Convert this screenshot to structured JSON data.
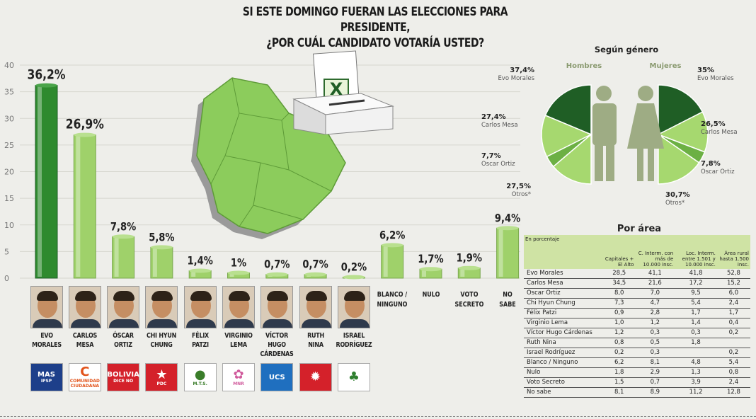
{
  "header": {
    "line1": "SI ESTE DOMINGO FUERAN LAS ELECCIONES PARA PRESIDENTE,",
    "line2": "¿POR CUÁL CANDIDATO VOTARÍA USTED?"
  },
  "colors": {
    "bar_main": "#2e8a2e",
    "bar": "#9fd16a",
    "dark_green": "#1f5e25",
    "mid_green": "#6cb044",
    "light_green": "#a6d86f",
    "figure": "#9eac84"
  },
  "chart_data": [
    {
      "type": "bar",
      "categories": [
        "EVO MORALES",
        "CARLOS MESA",
        "ÓSCAR ORTIZ",
        "CHI HYUN CHUNG",
        "FÉLIX PATZI",
        "VIRGINIO LEMA",
        "VÍCTOR HUGO CÁRDENAS",
        "RUTH NINA",
        "ISRAEL RODRÍGUEZ",
        "BLANCO / NINGUNO",
        "NULO",
        "VOTO SECRETO",
        "NO SABE"
      ],
      "values": [
        36.2,
        26.9,
        7.8,
        5.8,
        1.4,
        1,
        0.7,
        0.7,
        0.2,
        6.2,
        1.7,
        1.9,
        9.4
      ],
      "data_labels": [
        "36,2%",
        "26,9%",
        "7,8%",
        "5,8%",
        "1,4%",
        "1%",
        "0,7%",
        "0,7%",
        "0,2%",
        "6,2%",
        "1,7%",
        "1,9%",
        "9,4%"
      ],
      "ylim": [
        0,
        40
      ],
      "yticks": [
        "0",
        "5",
        "10",
        "15",
        "20",
        "25",
        "30",
        "35",
        "40"
      ],
      "title": "",
      "xlabel": "",
      "ylabel": ""
    },
    {
      "type": "pie",
      "title": "Según género",
      "series": [
        {
          "name": "Hombres",
          "labels": [
            "Evo Morales",
            "Carlos Mesa",
            "Oscar Ortiz",
            "Otros*"
          ],
          "values": [
            37.4,
            27.4,
            7.7,
            27.5
          ],
          "value_labels": [
            "37,4%",
            "27,4%",
            "7,7%",
            "27,5%"
          ]
        },
        {
          "name": "Mujeres",
          "labels": [
            "Evo Morales",
            "Carlos Mesa",
            "Oscar Ortiz",
            "Otros*"
          ],
          "values": [
            35,
            26.5,
            7.8,
            30.7
          ],
          "value_labels": [
            "35%",
            "26,5%",
            "7,8%",
            "30,7%"
          ]
        }
      ]
    },
    {
      "type": "table",
      "title": "Por área",
      "columns": [
        "En porcentaje",
        "Capitales + El Alto",
        "C. Interm. con más de 10.000 insc.",
        "Loc. Interm. entre 1.501 y 10.000 insc.",
        "Área rural hasta 1.500 insc."
      ],
      "rows": [
        [
          "Evo Morales",
          "28,5",
          "41,1",
          "41,8",
          "52,8"
        ],
        [
          "Carlos Mesa",
          "34,5",
          "21,6",
          "17,2",
          "15,2"
        ],
        [
          "Oscar Ortiz",
          "8,0",
          "7,0",
          "9,5",
          "6,0"
        ],
        [
          "Chi Hyun Chung",
          "7,3",
          "4,7",
          "5,4",
          "2,4"
        ],
        [
          "Félix Patzi",
          "0,9",
          "2,8",
          "1,7",
          "1,7"
        ],
        [
          "Virginio Lema",
          "1,0",
          "1,2",
          "1,4",
          "0,4"
        ],
        [
          "Víctor Hugo Cárdenas",
          "1,2",
          "0,3",
          "0,3",
          "0,2"
        ],
        [
          "Ruth Nina",
          "0,8",
          "0,5",
          "1,8",
          ""
        ],
        [
          "Israel Rodríguez",
          "0,2",
          "0,3",
          "",
          "0,2"
        ],
        [
          "Blanco / Ninguno",
          "6,2",
          "8,1",
          "4,8",
          "5,4"
        ],
        [
          "Nulo",
          "1,8",
          "2,9",
          "1,3",
          "0,8"
        ],
        [
          "Voto Secreto",
          "1,5",
          "0,7",
          "3,9",
          "2,4"
        ],
        [
          "No sabe",
          "8,1",
          "8,9",
          "11,2",
          "12,8"
        ]
      ]
    }
  ],
  "candidates": [
    {
      "name": [
        "EVO",
        "MORALES"
      ],
      "logo": [
        "MAS",
        "IPSP"
      ],
      "logo_bg": "#1d3f8a",
      "logo_fg": "#ffffff"
    },
    {
      "name": [
        "CARLOS",
        "MESA"
      ],
      "logo": [
        "C",
        "COMUNIDAD CIUDADANA"
      ],
      "logo_bg": "#ffffff",
      "logo_fg": "#e2531a"
    },
    {
      "name": [
        "ÓSCAR",
        "ORTIZ"
      ],
      "logo": [
        "BOLIVIA",
        "DICE NO"
      ],
      "logo_bg": "#d4212a",
      "logo_fg": "#ffffff"
    },
    {
      "name": [
        "CHI HYUN",
        "CHUNG"
      ],
      "logo": [
        "★",
        "PDC"
      ],
      "logo_bg": "#d4212a",
      "logo_fg": "#ffffff"
    },
    {
      "name": [
        "FÉLIX",
        "PATZI"
      ],
      "logo": [
        "●",
        "M.T.S."
      ],
      "logo_bg": "#ffffff",
      "logo_fg": "#3a7d2a"
    },
    {
      "name": [
        "VIRGINIO",
        "LEMA"
      ],
      "logo": [
        "✿",
        "MNR"
      ],
      "logo_bg": "#ffffff",
      "logo_fg": "#d05a9c"
    },
    {
      "name": [
        "VÍCTOR HUGO",
        "CÁRDENAS"
      ],
      "logo": [
        "UCS",
        ""
      ],
      "logo_bg": "#1f6fbf",
      "logo_fg": "#ffffff"
    },
    {
      "name": [
        "RUTH",
        "NINA"
      ],
      "logo": [
        "✹",
        ""
      ],
      "logo_bg": "#d4212a",
      "logo_fg": "#ffffff"
    },
    {
      "name": [
        "ISRAEL",
        "RODRÍGUEZ"
      ],
      "logo": [
        "♣",
        ""
      ],
      "logo_bg": "#ffffff",
      "logo_fg": "#2f7f2f"
    }
  ],
  "non_candidates": [
    [
      "BLANCO /",
      "NINGUNO"
    ],
    [
      "NULO"
    ],
    [
      "VOTO",
      "SECRETO"
    ],
    [
      "NO",
      "SABE"
    ]
  ],
  "gender_labels": {
    "men": "Hombres",
    "women": "Mujeres"
  },
  "ballot_mark": "X"
}
